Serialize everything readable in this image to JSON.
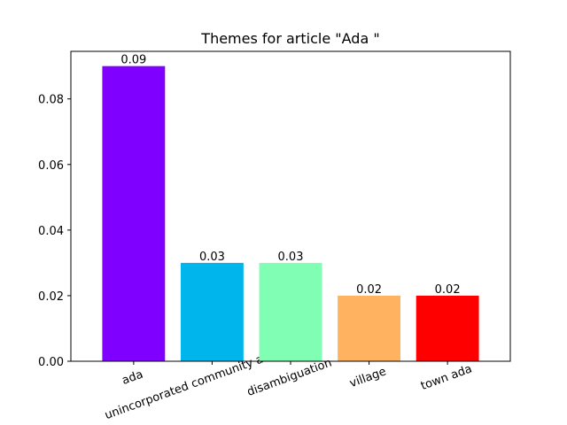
{
  "chart_data": {
    "type": "bar",
    "title": "Themes for article \"Ada \"",
    "xlabel": "",
    "ylabel": "",
    "categories": [
      "ada",
      "unincorporated community ada county",
      "disambiguation",
      "village",
      "town ada"
    ],
    "values": [
      0.09,
      0.03,
      0.03,
      0.02,
      0.02
    ],
    "value_labels": [
      "0.09",
      "0.03",
      "0.03",
      "0.02",
      "0.02"
    ],
    "colors": [
      "#8000ff",
      "#00b5eb",
      "#80ffb4",
      "#ffb360",
      "#ff0000"
    ],
    "ylim": [
      0,
      0.0945
    ],
    "yticks": [
      0.0,
      0.02,
      0.04,
      0.06,
      0.08
    ],
    "ytick_labels": [
      "0.00",
      "0.02",
      "0.04",
      "0.06",
      "0.08"
    ],
    "grid": false,
    "legend": "none"
  }
}
